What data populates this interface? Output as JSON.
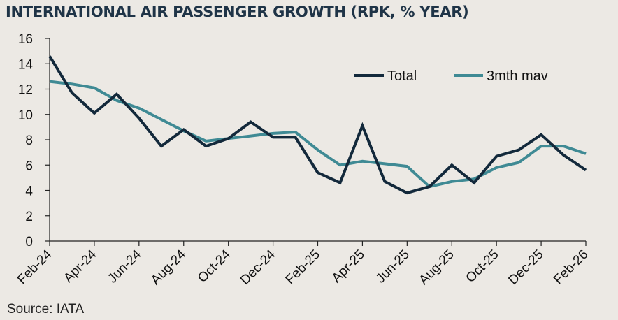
{
  "title": "INTERNATIONAL AIR PASSENGER GROWTH (RPK, % YEAR)",
  "source": "Source: IATA",
  "colors": {
    "total": "#13293b",
    "mav": "#3f8a94",
    "background": "#ece9e4",
    "axis": "#222222"
  },
  "chart_data": {
    "type": "line",
    "title": "INTERNATIONAL AIR PASSENGER GROWTH (RPK, % YEAR)",
    "x": [
      "Feb-24",
      "Mar-24",
      "Apr-24",
      "May-24",
      "Jun-24",
      "Jul-24",
      "Aug-24",
      "Sep-24",
      "Oct-24",
      "Nov-24",
      "Dec-24",
      "Jan-25",
      "Feb-25",
      "Mar-25",
      "Apr-25",
      "May-25",
      "Jun-25",
      "Jul-25",
      "Aug-25",
      "Sep-25",
      "Oct-25",
      "Nov-25",
      "Dec-25",
      "Jan-26",
      "Feb-26"
    ],
    "x_tick_labels": [
      "Feb-24",
      "Apr-24",
      "Jun-24",
      "Aug-24",
      "Oct-24",
      "Dec-24",
      "Feb-25",
      "Apr-25",
      "Jun-25",
      "Aug-25",
      "Oct-25",
      "Dec-25",
      "Feb-26"
    ],
    "y_ticks": [
      0,
      2,
      4,
      6,
      8,
      10,
      12,
      14,
      16
    ],
    "ylim": [
      0,
      16
    ],
    "grid": false,
    "legend_position": "top-right",
    "series": [
      {
        "name": "Total",
        "color": "#13293b",
        "values": [
          14.6,
          11.7,
          10.1,
          11.6,
          9.7,
          7.5,
          8.8,
          7.5,
          8.1,
          9.4,
          8.2,
          8.2,
          5.4,
          4.6,
          9.1,
          4.7,
          3.8,
          4.3,
          6.0,
          4.6,
          6.7,
          7.2,
          8.4,
          6.8,
          5.6
        ]
      },
      {
        "name": "3mth mav",
        "color": "#3f8a94",
        "values": [
          12.6,
          12.4,
          12.1,
          11.1,
          10.5,
          9.6,
          8.7,
          7.9,
          8.1,
          8.3,
          8.5,
          8.6,
          7.2,
          6.0,
          6.3,
          6.1,
          5.9,
          4.3,
          4.7,
          4.9,
          5.8,
          6.2,
          7.5,
          7.5,
          6.9
        ]
      }
    ]
  }
}
